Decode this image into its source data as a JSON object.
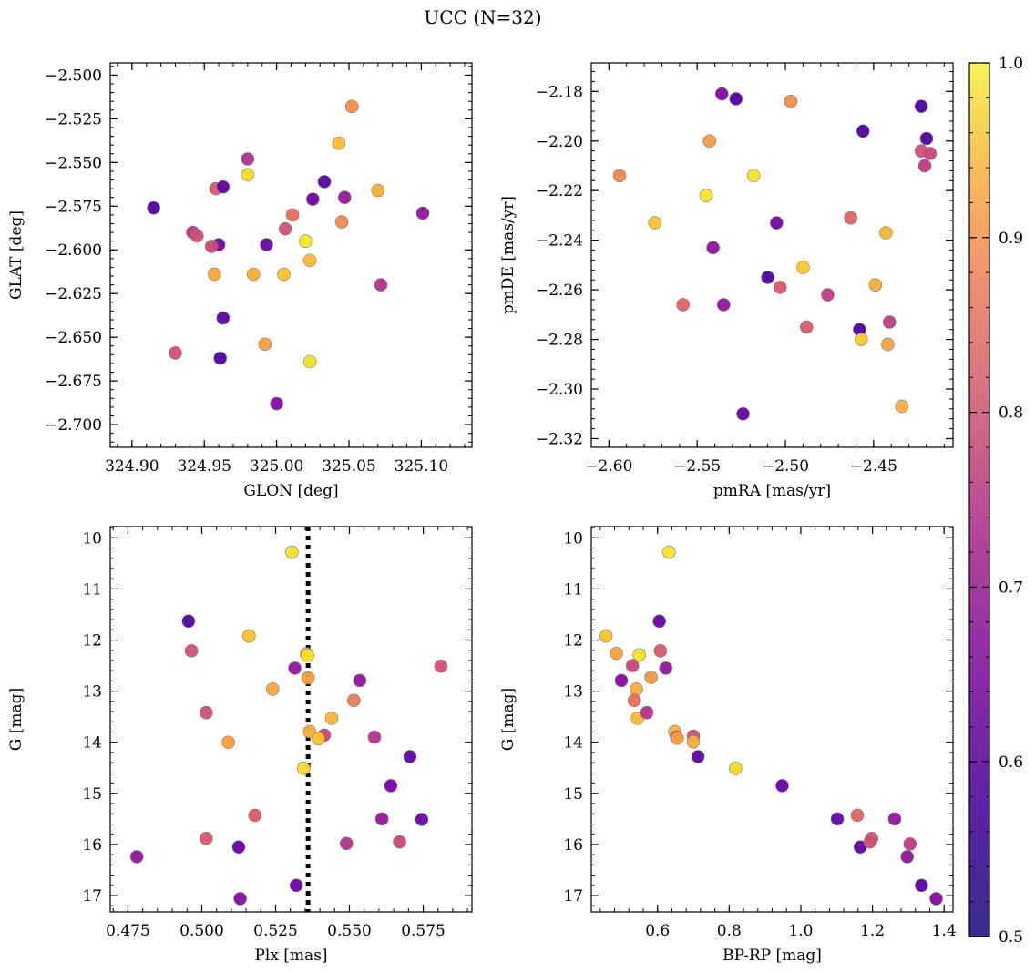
{
  "figure": {
    "title": "UCC (N=32)"
  },
  "colorbar": {
    "range": [
      0.5,
      1.0
    ],
    "ticks": [
      0.5,
      0.6,
      0.7,
      0.8,
      0.9,
      1.0
    ],
    "tick_labels": [
      "0.5",
      "0.6",
      "0.7",
      "0.8",
      "0.9",
      "1.0"
    ],
    "colormap": "plasma"
  },
  "chart_data": [
    {
      "type": "scatter",
      "panel": "top-left",
      "xlabel": "GLON [deg]",
      "ylabel": "GLAT [deg]",
      "xlim": [
        324.885,
        325.135
      ],
      "ylim": [
        -2.713,
        -2.493
      ],
      "xticks": [
        324.9,
        324.95,
        325.0,
        325.05,
        325.1
      ],
      "xtick_labels": [
        "324.90",
        "324.95",
        "325.00",
        "325.05",
        "325.10"
      ],
      "yticks": [
        -2.5,
        -2.525,
        -2.55,
        -2.575,
        -2.6,
        -2.625,
        -2.65,
        -2.675,
        -2.7
      ],
      "ytick_labels": [
        "−2.500",
        "−2.525",
        "−2.550",
        "−2.575",
        "−2.600",
        "−2.625",
        "−2.650",
        "−2.675",
        "−2.700"
      ],
      "x": [
        324.915,
        324.958,
        325.033,
        325.011,
        324.98,
        324.963,
        325.025,
        325.047,
        325.07,
        324.942,
        324.98,
        325.006,
        324.96,
        325.02,
        324.993,
        325.052,
        325.043,
        325.072,
        325.005,
        324.945,
        324.955,
        325.045,
        324.963,
        325.023,
        325.101,
        324.93,
        324.957,
        325.023,
        324.992,
        324.961,
        325.0,
        324.984
      ],
      "y": [
        -2.576,
        -2.565,
        -2.561,
        -2.58,
        -2.548,
        -2.564,
        -2.571,
        -2.57,
        -2.566,
        -2.59,
        -2.557,
        -2.588,
        -2.597,
        -2.595,
        -2.597,
        -2.518,
        -2.539,
        -2.62,
        -2.614,
        -2.592,
        -2.598,
        -2.584,
        -2.639,
        -2.606,
        -2.579,
        -2.659,
        -2.614,
        -2.664,
        -2.654,
        -2.662,
        -2.688,
        -2.614
      ],
      "values": [
        0.52,
        0.76,
        0.53,
        0.8,
        0.68,
        0.54,
        0.57,
        0.63,
        0.9,
        0.69,
        0.96,
        0.74,
        0.57,
        0.98,
        0.56,
        0.85,
        0.92,
        0.68,
        0.93,
        0.74,
        0.73,
        0.84,
        0.54,
        0.92,
        0.62,
        0.74,
        0.89,
        0.97,
        0.88,
        0.52,
        0.6,
        0.9
      ]
    },
    {
      "type": "scatter",
      "panel": "top-right",
      "xlabel": "pmRA [mas/yr]",
      "ylabel": "pmDE [mas/yr]",
      "xlim": [
        -2.61,
        -2.405
      ],
      "ylim": [
        -2.3235,
        -2.1685
      ],
      "xticks": [
        -2.6,
        -2.55,
        -2.5,
        -2.45
      ],
      "xtick_labels": [
        "−2.60",
        "−2.55",
        "−2.50",
        "−2.45"
      ],
      "yticks": [
        -2.18,
        -2.2,
        -2.22,
        -2.24,
        -2.26,
        -2.28,
        -2.3,
        -2.32
      ],
      "ytick_labels": [
        "−2.18",
        "−2.20",
        "−2.22",
        "−2.24",
        "−2.26",
        "−2.28",
        "−2.30",
        "−2.32"
      ],
      "x": [
        -2.536,
        -2.528,
        -2.497,
        -2.423,
        -2.456,
        -2.42,
        -2.543,
        -2.423,
        -2.418,
        -2.421,
        -2.594,
        -2.518,
        -2.545,
        -2.574,
        -2.505,
        -2.463,
        -2.541,
        -2.443,
        -2.49,
        -2.51,
        -2.449,
        -2.558,
        -2.535,
        -2.503,
        -2.476,
        -2.488,
        -2.458,
        -2.441,
        -2.457,
        -2.442,
        -2.434,
        -2.524
      ],
      "y": [
        -2.181,
        -2.183,
        -2.184,
        -2.186,
        -2.196,
        -2.199,
        -2.2,
        -2.204,
        -2.205,
        -2.21,
        -2.214,
        -2.214,
        -2.222,
        -2.233,
        -2.233,
        -2.231,
        -2.243,
        -2.237,
        -2.251,
        -2.255,
        -2.258,
        -2.266,
        -2.266,
        -2.259,
        -2.262,
        -2.275,
        -2.276,
        -2.273,
        -2.28,
        -2.282,
        -2.307,
        -2.31
      ],
      "values": [
        0.6,
        0.52,
        0.85,
        0.52,
        0.52,
        0.52,
        0.87,
        0.74,
        0.72,
        0.7,
        0.84,
        0.97,
        0.98,
        0.93,
        0.58,
        0.78,
        0.62,
        0.91,
        0.94,
        0.52,
        0.9,
        0.78,
        0.62,
        0.76,
        0.7,
        0.76,
        0.52,
        0.7,
        0.94,
        0.88,
        0.9,
        0.55
      ]
    },
    {
      "type": "scatter",
      "panel": "bottom-left",
      "xlabel": "Plx [mas]",
      "ylabel": "G [mag]",
      "xlim": [
        0.469,
        0.5915
      ],
      "ylim": [
        17.32,
        9.78
      ],
      "y_inverted": true,
      "xticks": [
        0.475,
        0.5,
        0.525,
        0.55,
        0.575
      ],
      "xtick_labels": [
        "0.475",
        "0.500",
        "0.525",
        "0.550",
        "0.575"
      ],
      "yticks": [
        10,
        11,
        12,
        13,
        14,
        15,
        16,
        17
      ],
      "ytick_labels": [
        "10",
        "11",
        "12",
        "13",
        "14",
        "15",
        "16",
        "17"
      ],
      "vline": {
        "x": 0.536,
        "style": "dotted",
        "color": "#000000"
      },
      "x": [
        0.5305,
        0.4955,
        0.516,
        0.4965,
        0.5355,
        0.5358,
        0.581,
        0.5315,
        0.536,
        0.5535,
        0.524,
        0.5015,
        0.544,
        0.5515,
        0.5365,
        0.5415,
        0.5585,
        0.5395,
        0.509,
        0.5705,
        0.5345,
        0.564,
        0.518,
        0.561,
        0.5745,
        0.5015,
        0.567,
        0.549,
        0.5125,
        0.478,
        0.532,
        0.513
      ],
      "y": [
        10.28,
        11.63,
        11.92,
        12.21,
        12.27,
        12.3,
        12.51,
        12.55,
        12.74,
        12.79,
        12.96,
        13.42,
        13.53,
        13.18,
        13.79,
        13.86,
        13.9,
        13.93,
        14.0,
        14.28,
        14.51,
        14.85,
        15.43,
        15.5,
        15.51,
        15.88,
        15.95,
        15.98,
        16.05,
        16.24,
        16.8,
        17.06
      ],
      "values": [
        0.97,
        0.52,
        0.93,
        0.74,
        0.9,
        0.97,
        0.74,
        0.62,
        0.88,
        0.62,
        0.89,
        0.74,
        0.91,
        0.82,
        0.9,
        0.72,
        0.68,
        0.93,
        0.88,
        0.54,
        0.96,
        0.58,
        0.76,
        0.62,
        0.56,
        0.76,
        0.72,
        0.68,
        0.55,
        0.62,
        0.56,
        0.6
      ]
    },
    {
      "type": "scatter",
      "panel": "bottom-right",
      "xlabel": "BP-RP [mag]",
      "ylabel": "G [mag]",
      "xlim": [
        0.415,
        1.425
      ],
      "ylim": [
        17.32,
        9.78
      ],
      "y_inverted": true,
      "xticks": [
        0.6,
        0.8,
        1.0,
        1.2,
        1.4
      ],
      "xtick_labels": [
        "0.6",
        "0.8",
        "1.0",
        "1.2",
        "1.4"
      ],
      "yticks": [
        10,
        11,
        12,
        13,
        14,
        15,
        16,
        17
      ],
      "ytick_labels": [
        "10",
        "11",
        "12",
        "13",
        "14",
        "15",
        "16",
        "17"
      ],
      "x": [
        0.632,
        0.605,
        0.456,
        0.485,
        0.608,
        0.549,
        0.623,
        0.53,
        0.499,
        0.582,
        0.541,
        0.535,
        0.544,
        0.57,
        0.648,
        0.7,
        0.653,
        0.7,
        0.713,
        0.818,
        0.948,
        1.102,
        1.158,
        1.262,
        1.166,
        1.198,
        1.193,
        1.305,
        1.297,
        1.337,
        1.378,
        0.655
      ],
      "y": [
        10.28,
        11.63,
        11.92,
        12.26,
        12.21,
        12.29,
        12.55,
        12.5,
        12.79,
        12.73,
        12.96,
        13.18,
        13.53,
        13.42,
        13.79,
        13.88,
        13.9,
        13.99,
        14.28,
        14.51,
        14.85,
        15.5,
        15.43,
        15.5,
        16.05,
        15.88,
        15.95,
        15.99,
        16.24,
        16.8,
        17.06,
        13.92
      ],
      "values": [
        0.97,
        0.56,
        0.93,
        0.88,
        0.76,
        0.97,
        0.62,
        0.72,
        0.6,
        0.86,
        0.9,
        0.8,
        0.92,
        0.68,
        0.9,
        0.74,
        0.7,
        0.9,
        0.54,
        0.96,
        0.55,
        0.55,
        0.78,
        0.62,
        0.55,
        0.76,
        0.74,
        0.7,
        0.62,
        0.54,
        0.6,
        0.88
      ]
    }
  ]
}
